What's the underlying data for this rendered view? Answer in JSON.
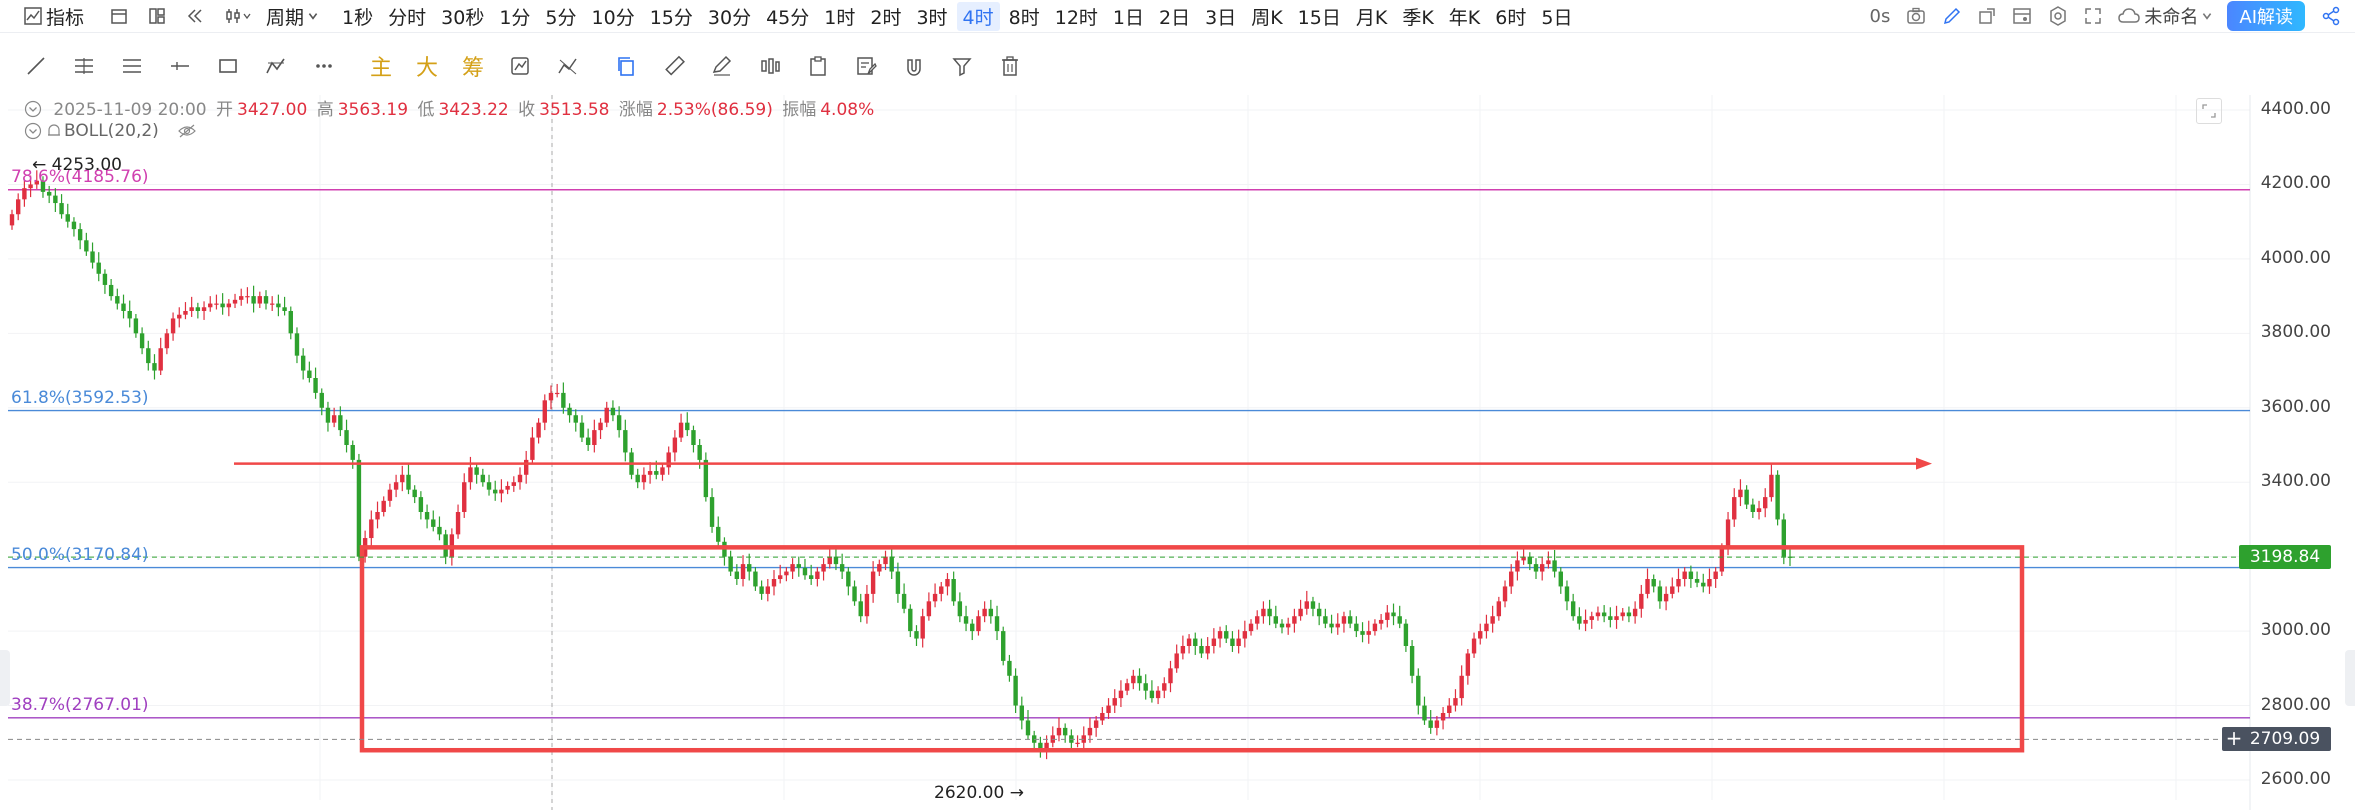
{
  "toolbar": {
    "indicator_label": "指标",
    "period_label": "周期",
    "timeframes": [
      "1秒",
      "分时",
      "30秒",
      "1分",
      "5分",
      "10分",
      "15分",
      "30分",
      "45分",
      "1时",
      "2时",
      "3时",
      "4时",
      "8时",
      "12时",
      "1日",
      "2日",
      "3日",
      "周K",
      "15日",
      "月K",
      "季K",
      "年K",
      "6时",
      "5日"
    ],
    "active_timeframe": "4时",
    "latency": "0s",
    "layout_name": "未命名",
    "ai_label": "AI解读"
  },
  "drawing_toolbar": {
    "text_tools": [
      "主",
      "大",
      "筹"
    ]
  },
  "legend": {
    "datetime": "2025-11-09 20:00",
    "open_label": "开",
    "open": "3427.00",
    "high_label": "高",
    "high": "3563.19",
    "low_label": "低",
    "low": "3423.22",
    "close_label": "收",
    "close": "3513.58",
    "change_label": "涨幅",
    "change": "2.53%(86.59)",
    "amplitude_label": "振幅",
    "amplitude": "4.08%",
    "indicator": "BOLL(20,2)"
  },
  "colors": {
    "up": "#e03040",
    "down": "#2ea12e",
    "fib_786": "#d040b0",
    "fib_618": "#4a8ad8",
    "fib_50": "#4a8ad8",
    "fib_382": "#a040c0",
    "annotation": "#f04848",
    "current_price_bg": "#2ea12e",
    "cursor_price_bg": "#4a5260"
  },
  "price_axis": {
    "ticks": [
      "4400.00",
      "4200.00",
      "4000.00",
      "3800.00",
      "3600.00",
      "3400.00",
      "3200.00",
      "3000.00",
      "2800.00",
      "2600.00"
    ],
    "current_price": "3198.84",
    "cursor_price": "2709.09"
  },
  "annotations": {
    "high_marker": "4253.00",
    "low_marker": "2620.00"
  },
  "fib_levels": [
    {
      "label": "78.6%(4185.76)",
      "price": 4185.76,
      "color": "#d040b0"
    },
    {
      "label": "61.8%(3592.53)",
      "price": 3592.53,
      "color": "#4a8ad8"
    },
    {
      "label": "50.0%(3170.84)",
      "price": 3170.84,
      "color": "#4a8ad8"
    },
    {
      "label": "38.7%(2767.01)",
      "price": 2767.01,
      "color": "#a040c0"
    }
  ],
  "chart_data": {
    "type": "candlestick",
    "ylim": [
      2550,
      4450
    ],
    "resistance_line_price": 3450,
    "box": {
      "top_price": 3225,
      "bottom_price": 2680
    },
    "candles_close": [
      4120,
      4160,
      4190,
      4200,
      4210,
      4180,
      4170,
      4150,
      4120,
      4100,
      4080,
      4050,
      4020,
      3990,
      3960,
      3930,
      3900,
      3880,
      3860,
      3840,
      3800,
      3760,
      3720,
      3700,
      3760,
      3800,
      3840,
      3850,
      3860,
      3870,
      3860,
      3870,
      3880,
      3880,
      3870,
      3880,
      3890,
      3900,
      3900,
      3880,
      3900,
      3880,
      3880,
      3870,
      3860,
      3800,
      3740,
      3700,
      3680,
      3640,
      3600,
      3560,
      3580,
      3540,
      3500,
      3460,
      3200,
      3250,
      3300,
      3320,
      3350,
      3380,
      3400,
      3420,
      3380,
      3360,
      3320,
      3300,
      3280,
      3260,
      3200,
      3260,
      3320,
      3400,
      3440,
      3420,
      3400,
      3380,
      3370,
      3380,
      3390,
      3400,
      3420,
      3460,
      3520,
      3560,
      3620,
      3640,
      3640,
      3600,
      3580,
      3560,
      3520,
      3500,
      3540,
      3560,
      3600,
      3580,
      3540,
      3480,
      3420,
      3400,
      3420,
      3430,
      3420,
      3440,
      3480,
      3520,
      3560,
      3540,
      3500,
      3460,
      3360,
      3280,
      3240,
      3200,
      3160,
      3140,
      3180,
      3160,
      3120,
      3100,
      3120,
      3140,
      3150,
      3160,
      3180,
      3170,
      3150,
      3140,
      3160,
      3180,
      3200,
      3180,
      3160,
      3120,
      3080,
      3040,
      3100,
      3160,
      3180,
      3200,
      3160,
      3100,
      3060,
      3000,
      2980,
      3040,
      3080,
      3100,
      3120,
      3140,
      3080,
      3040,
      3020,
      3000,
      3040,
      3060,
      3040,
      3000,
      2920,
      2880,
      2800,
      2760,
      2720,
      2700,
      2680,
      2700,
      2720,
      2740,
      2720,
      2700,
      2700,
      2720,
      2740,
      2760,
      2780,
      2800,
      2820,
      2840,
      2860,
      2880,
      2860,
      2840,
      2820,
      2840,
      2860,
      2900,
      2940,
      2960,
      2980,
      2960,
      2940,
      2960,
      2980,
      3000,
      2980,
      2960,
      2980,
      3000,
      3020,
      3040,
      3060,
      3040,
      3020,
      3010,
      3020,
      3040,
      3060,
      3080,
      3060,
      3040,
      3020,
      3010,
      3020,
      3040,
      3020,
      3000,
      2990,
      3000,
      3020,
      3030,
      3050,
      3040,
      3020,
      2960,
      2880,
      2800,
      2760,
      2740,
      2760,
      2780,
      2800,
      2820,
      2880,
      2940,
      2980,
      3000,
      3020,
      3040,
      3080,
      3120,
      3160,
      3190,
      3200,
      3180,
      3160,
      3180,
      3190,
      3160,
      3120,
      3080,
      3040,
      3020,
      3030,
      3040,
      3050,
      3040,
      3030,
      3040,
      3050,
      3040,
      3060,
      3100,
      3140,
      3120,
      3080,
      3100,
      3120,
      3140,
      3160,
      3140,
      3130,
      3120,
      3140,
      3160,
      3220,
      3300,
      3360,
      3380,
      3340,
      3320,
      3330,
      3360,
      3420,
      3300,
      3200,
      3199
    ]
  }
}
